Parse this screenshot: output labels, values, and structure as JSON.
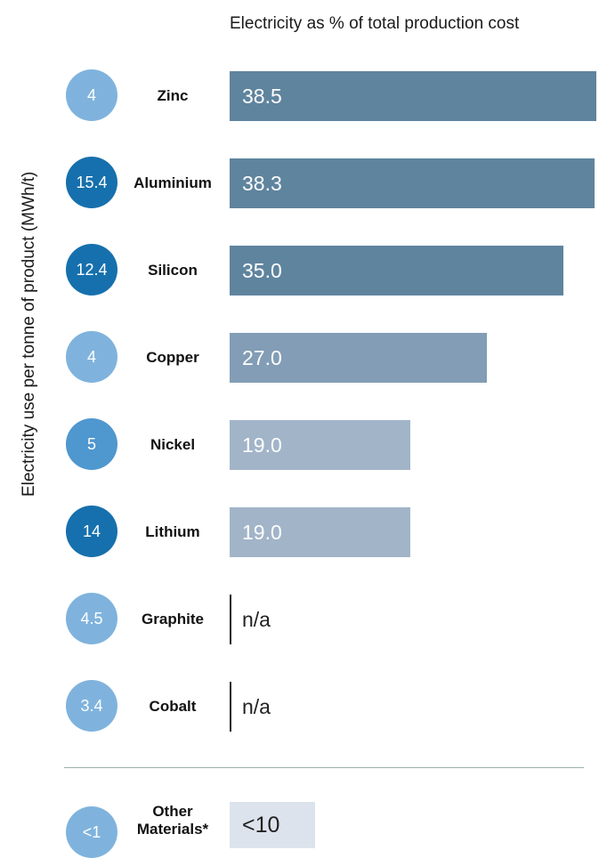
{
  "chart_data": {
    "type": "bar",
    "title": "Electricity as % of total production cost",
    "ylabel": "Electricity use per tonne of product (MWh/t)",
    "xlim": [
      0,
      38.5
    ],
    "categories": [
      "Zinc",
      "Aluminium",
      "Silicon",
      "Copper",
      "Nickel",
      "Lithium",
      "Graphite",
      "Cobalt"
    ],
    "electricity_use_mwh_per_t": [
      "4",
      "15.4",
      "12.4",
      "4",
      "5",
      "14",
      "4.5",
      "3.4"
    ],
    "values": [
      38.5,
      38.3,
      35.0,
      27.0,
      19.0,
      19.0,
      null,
      null
    ],
    "value_labels": [
      "38.5",
      "38.3",
      "35.0",
      "27.0",
      "19.0",
      "19.0",
      "n/a",
      "n/a"
    ],
    "other": {
      "label": "Other Materials*",
      "electricity_use_mwh_per_t": "<1",
      "value_label": "<10"
    },
    "colors": {
      "circle_light": "#7fb3dd",
      "circle_mid": "#4f97cf",
      "circle_dark": "#1670ad",
      "bar_dark": "#5f849e",
      "bar_mid": "#829db5",
      "bar_light": "#a2b4c8",
      "bar_other": "#dde3ec"
    },
    "circle_shades": [
      "light",
      "dark",
      "dark",
      "light",
      "mid",
      "dark",
      "light",
      "light"
    ],
    "bar_shades": [
      "dark",
      "dark",
      "dark",
      "mid",
      "light",
      "light",
      "none",
      "none"
    ]
  }
}
